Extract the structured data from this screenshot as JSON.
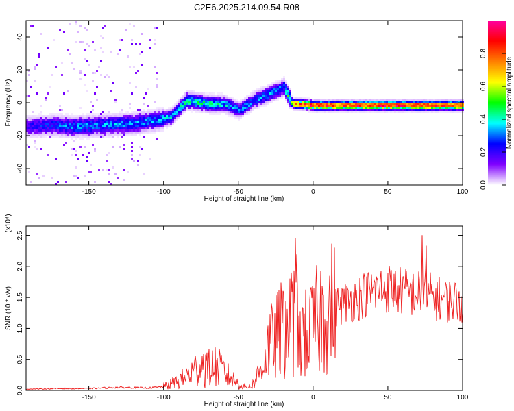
{
  "title": "C2E6.2025.214.09.54.R08",
  "chart_data": [
    {
      "type": "heatmap",
      "title": "C2E6.2025.214.09.54.R08",
      "xlabel": "Height of straight line (km)",
      "ylabel": "Frequency (Hz)",
      "xlim": [
        -192,
        100
      ],
      "ylim": [
        -50,
        50
      ],
      "x_ticks": [
        -150,
        -100,
        -50,
        0,
        50,
        100
      ],
      "y_ticks": [
        -40,
        -20,
        0,
        20,
        40
      ],
      "colorbar": {
        "label": "Normalized spectral amplitude",
        "range": [
          0,
          1
        ],
        "ticks": [
          0.0,
          0.2,
          0.4,
          0.6,
          0.8
        ],
        "colors": [
          "#ffffff",
          "#8000ff",
          "#0000ff",
          "#00ffff",
          "#00ff00",
          "#ffff00",
          "#ff8000",
          "#ff0000",
          "#ff00a0"
        ]
      },
      "ridge": {
        "height_km": [
          -192,
          -175,
          -160,
          -140,
          -120,
          -105,
          -95,
          -85,
          -70,
          -60,
          -50,
          -40,
          -30,
          -20,
          -14,
          -10,
          0,
          20,
          50,
          75,
          100
        ],
        "frequency_hz": [
          -14,
          -13,
          -14,
          -13,
          -12,
          -10,
          -8,
          2,
          0,
          0,
          -4,
          2,
          6,
          10,
          0,
          0,
          -1,
          -1,
          -1,
          -1,
          -1
        ],
        "amplitude": [
          0.2,
          0.25,
          0.3,
          0.3,
          0.3,
          0.3,
          0.35,
          0.4,
          0.4,
          0.35,
          0.3,
          0.3,
          0.3,
          0.3,
          0.6,
          0.7,
          0.8,
          0.75,
          0.8,
          0.8,
          0.75
        ]
      }
    },
    {
      "type": "line",
      "xlabel": "Height of straight line (km)",
      "ylabel": "SNR (10 * v/v)",
      "y_multiplier": "(x10⁴)",
      "xlim": [
        -192,
        100
      ],
      "ylim": [
        0,
        2.65
      ],
      "x_ticks": [
        -150,
        -100,
        -50,
        0,
        50,
        100
      ],
      "y_ticks": [
        0.0,
        0.5,
        1.0,
        1.5,
        2.0,
        2.5
      ],
      "color": "#ee2222",
      "series": [
        {
          "x": [
            -192,
            -170,
            -150,
            -130,
            -110,
            -100,
            -90,
            -80,
            -75,
            -70,
            -65,
            -60,
            -55,
            -50,
            -45,
            -40,
            -35,
            -30,
            -25,
            -20,
            -15,
            -12,
            -10,
            -5,
            0,
            5,
            10,
            20,
            30,
            40,
            50,
            60,
            70,
            75,
            80,
            90,
            100
          ],
          "y": [
            0.02,
            0.03,
            0.03,
            0.05,
            0.04,
            0.06,
            0.15,
            0.3,
            0.45,
            0.35,
            0.4,
            0.3,
            0.2,
            0.12,
            0.05,
            0.1,
            0.35,
            0.7,
            0.85,
            1.0,
            1.1,
            1.4,
            1.1,
            0.9,
            1.0,
            1.2,
            1.3,
            1.4,
            1.5,
            1.6,
            1.65,
            1.6,
            1.55,
            1.6,
            1.5,
            1.45,
            1.45
          ]
        }
      ]
    }
  ]
}
